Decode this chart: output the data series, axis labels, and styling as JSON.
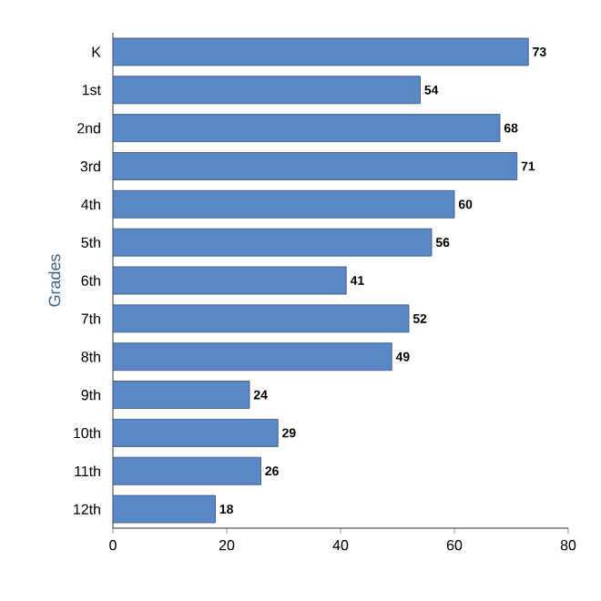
{
  "chart_data": {
    "type": "bar",
    "orientation": "horizontal",
    "ylabel": "Grades",
    "categories": [
      "K",
      "1st",
      "2nd",
      "3rd",
      "4th",
      "5th",
      "6th",
      "7th",
      "8th",
      "9th",
      "10th",
      "11th",
      "12th"
    ],
    "values": [
      73,
      54,
      68,
      71,
      60,
      56,
      41,
      52,
      49,
      24,
      29,
      26,
      18
    ],
    "color": "#5a87c6",
    "xlim": [
      0,
      80
    ],
    "xticks": [
      0,
      20,
      40,
      60,
      80
    ],
    "data_labels": true
  }
}
